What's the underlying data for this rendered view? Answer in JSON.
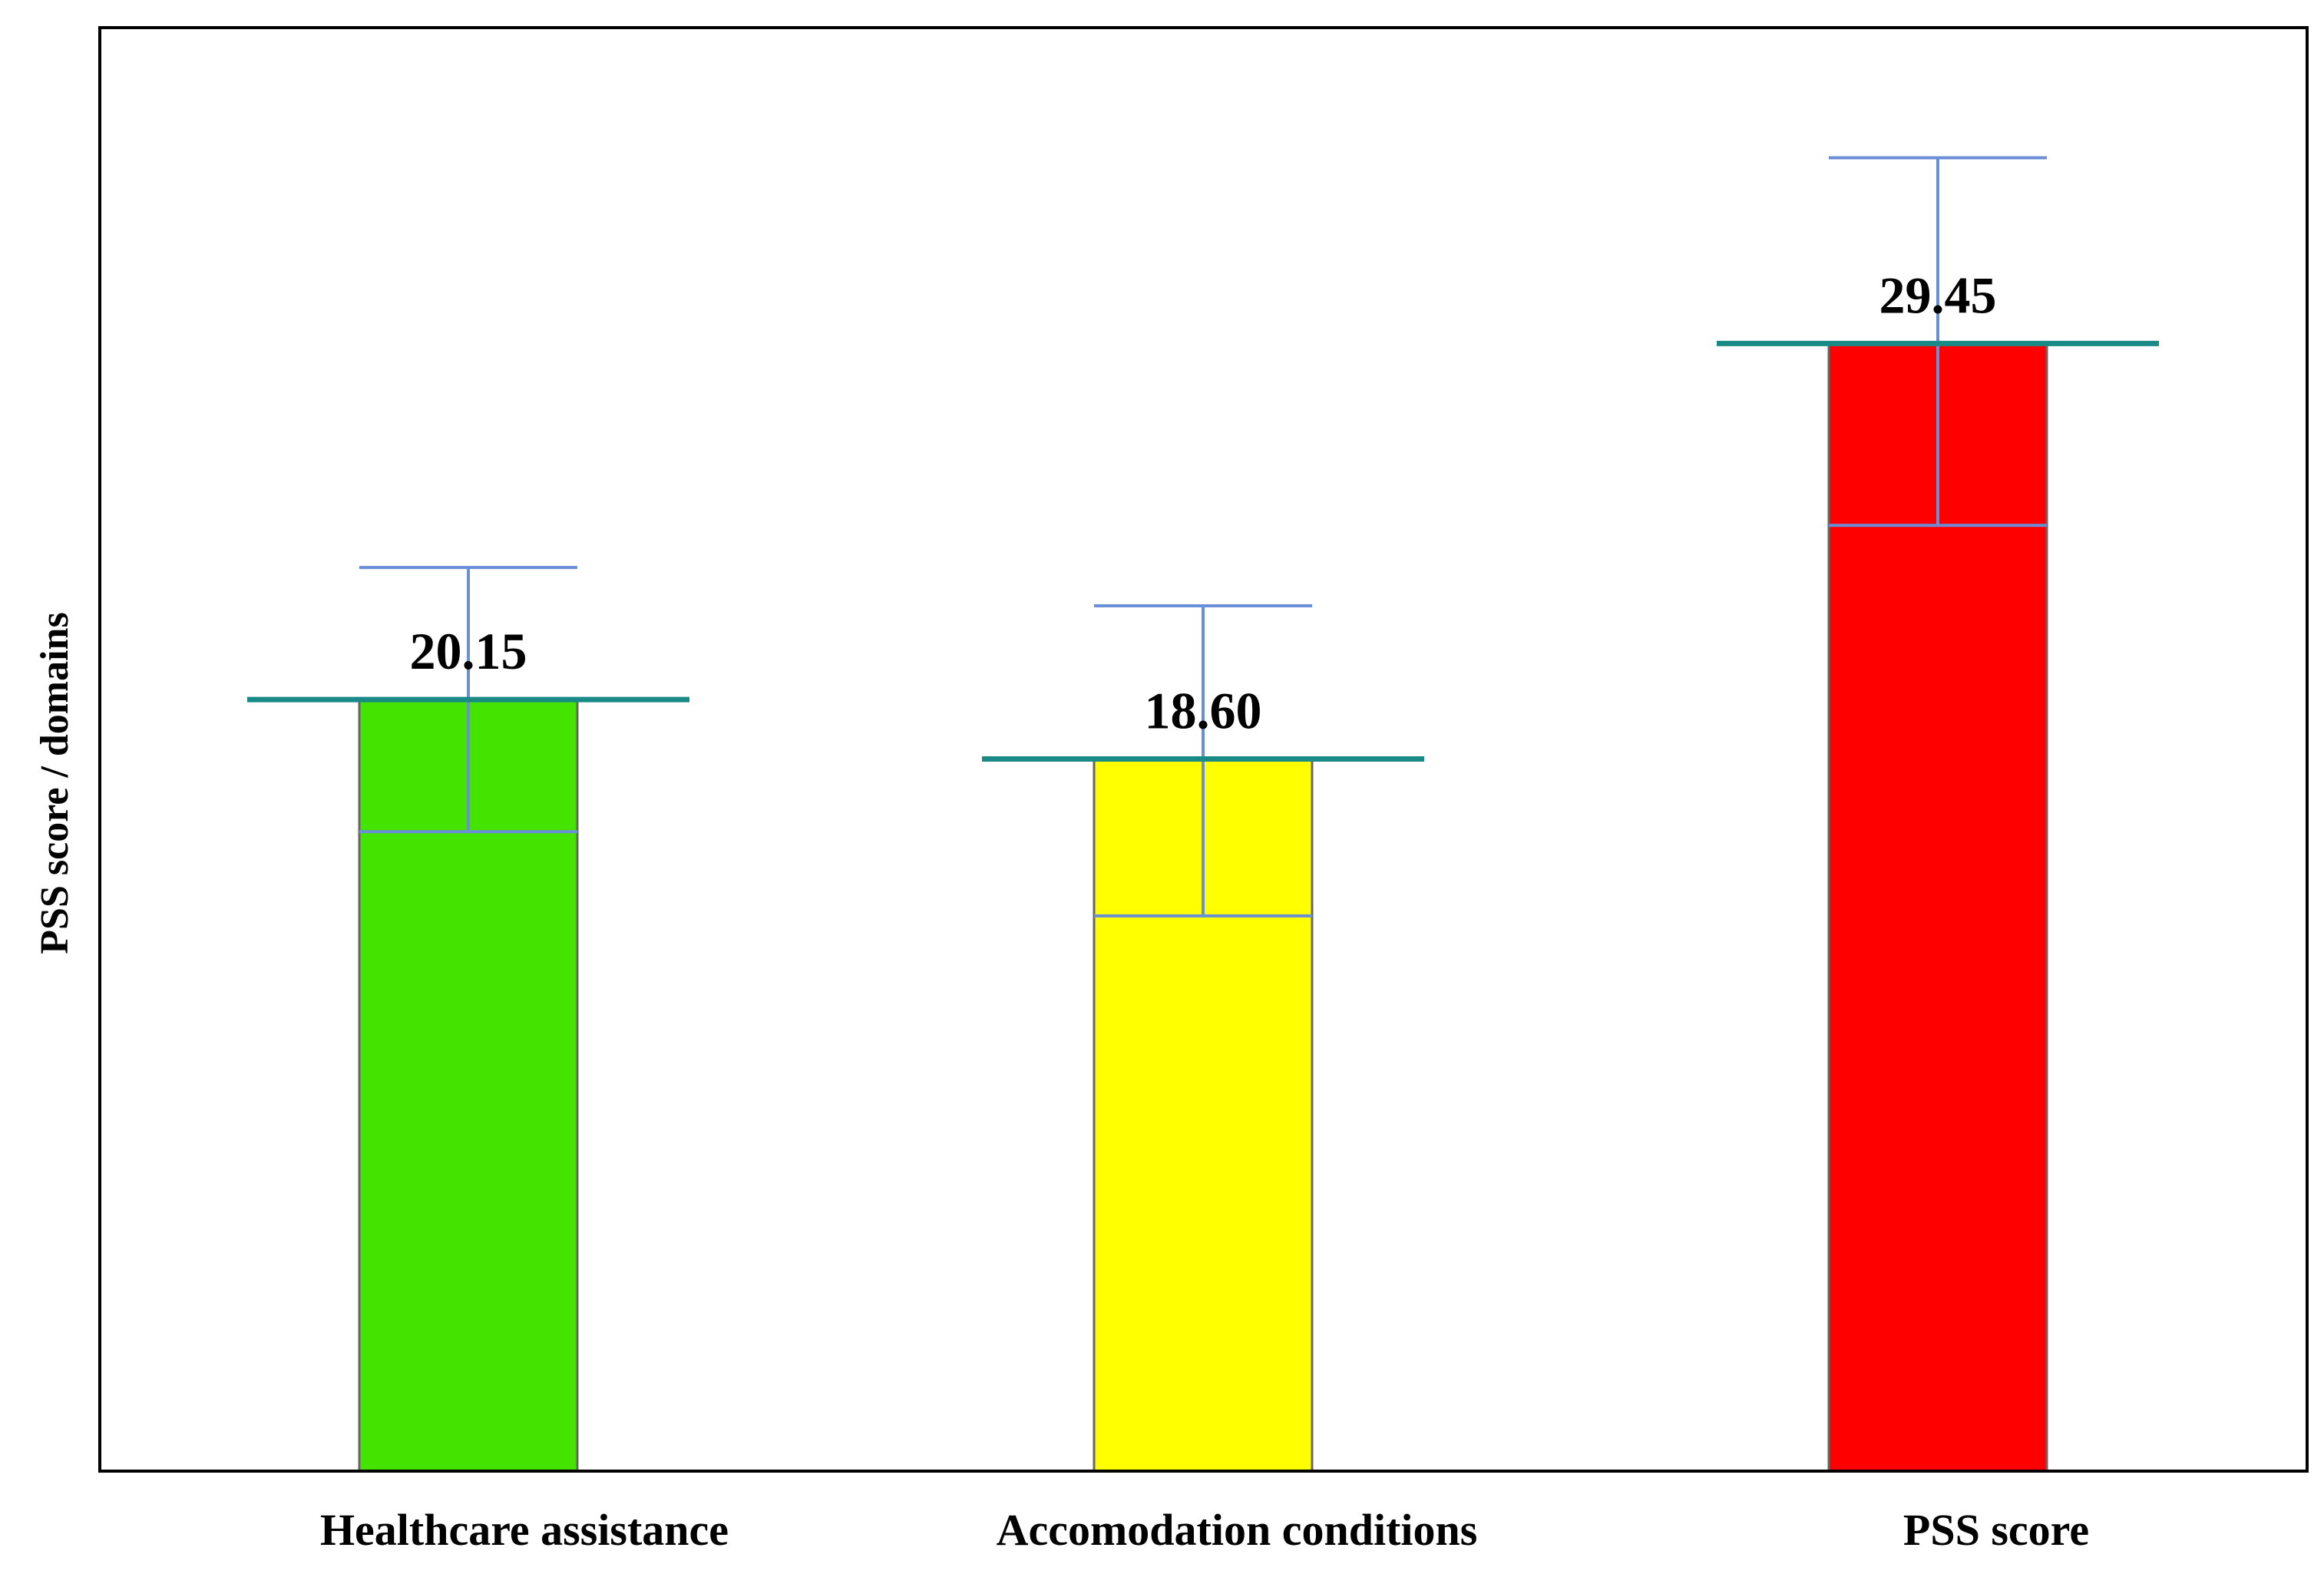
{
  "chart_data": {
    "type": "bar",
    "title": "",
    "xlabel": "",
    "ylabel": "PSS score / domains",
    "ylim": [
      0,
      37.7
    ],
    "grid": false,
    "legend": "none",
    "categories": [
      "Healthcare assistance",
      "Accomodation conditions",
      "PSS score"
    ],
    "values": [
      20.15,
      18.6,
      29.45
    ],
    "data_labels": [
      "20.15",
      "18.60",
      "29.45"
    ],
    "error_bars": {
      "lower": [
        16.7,
        14.5,
        24.7
      ],
      "upper": [
        23.6,
        22.6,
        34.3
      ]
    },
    "colors": {
      "bars": [
        "#44e400",
        "#ffff00",
        "#ff0000"
      ],
      "bar_edge": "#666666",
      "error_bar": "#6a8fd8",
      "mean_line": "#1a8a86",
      "axes": "#000000"
    }
  }
}
